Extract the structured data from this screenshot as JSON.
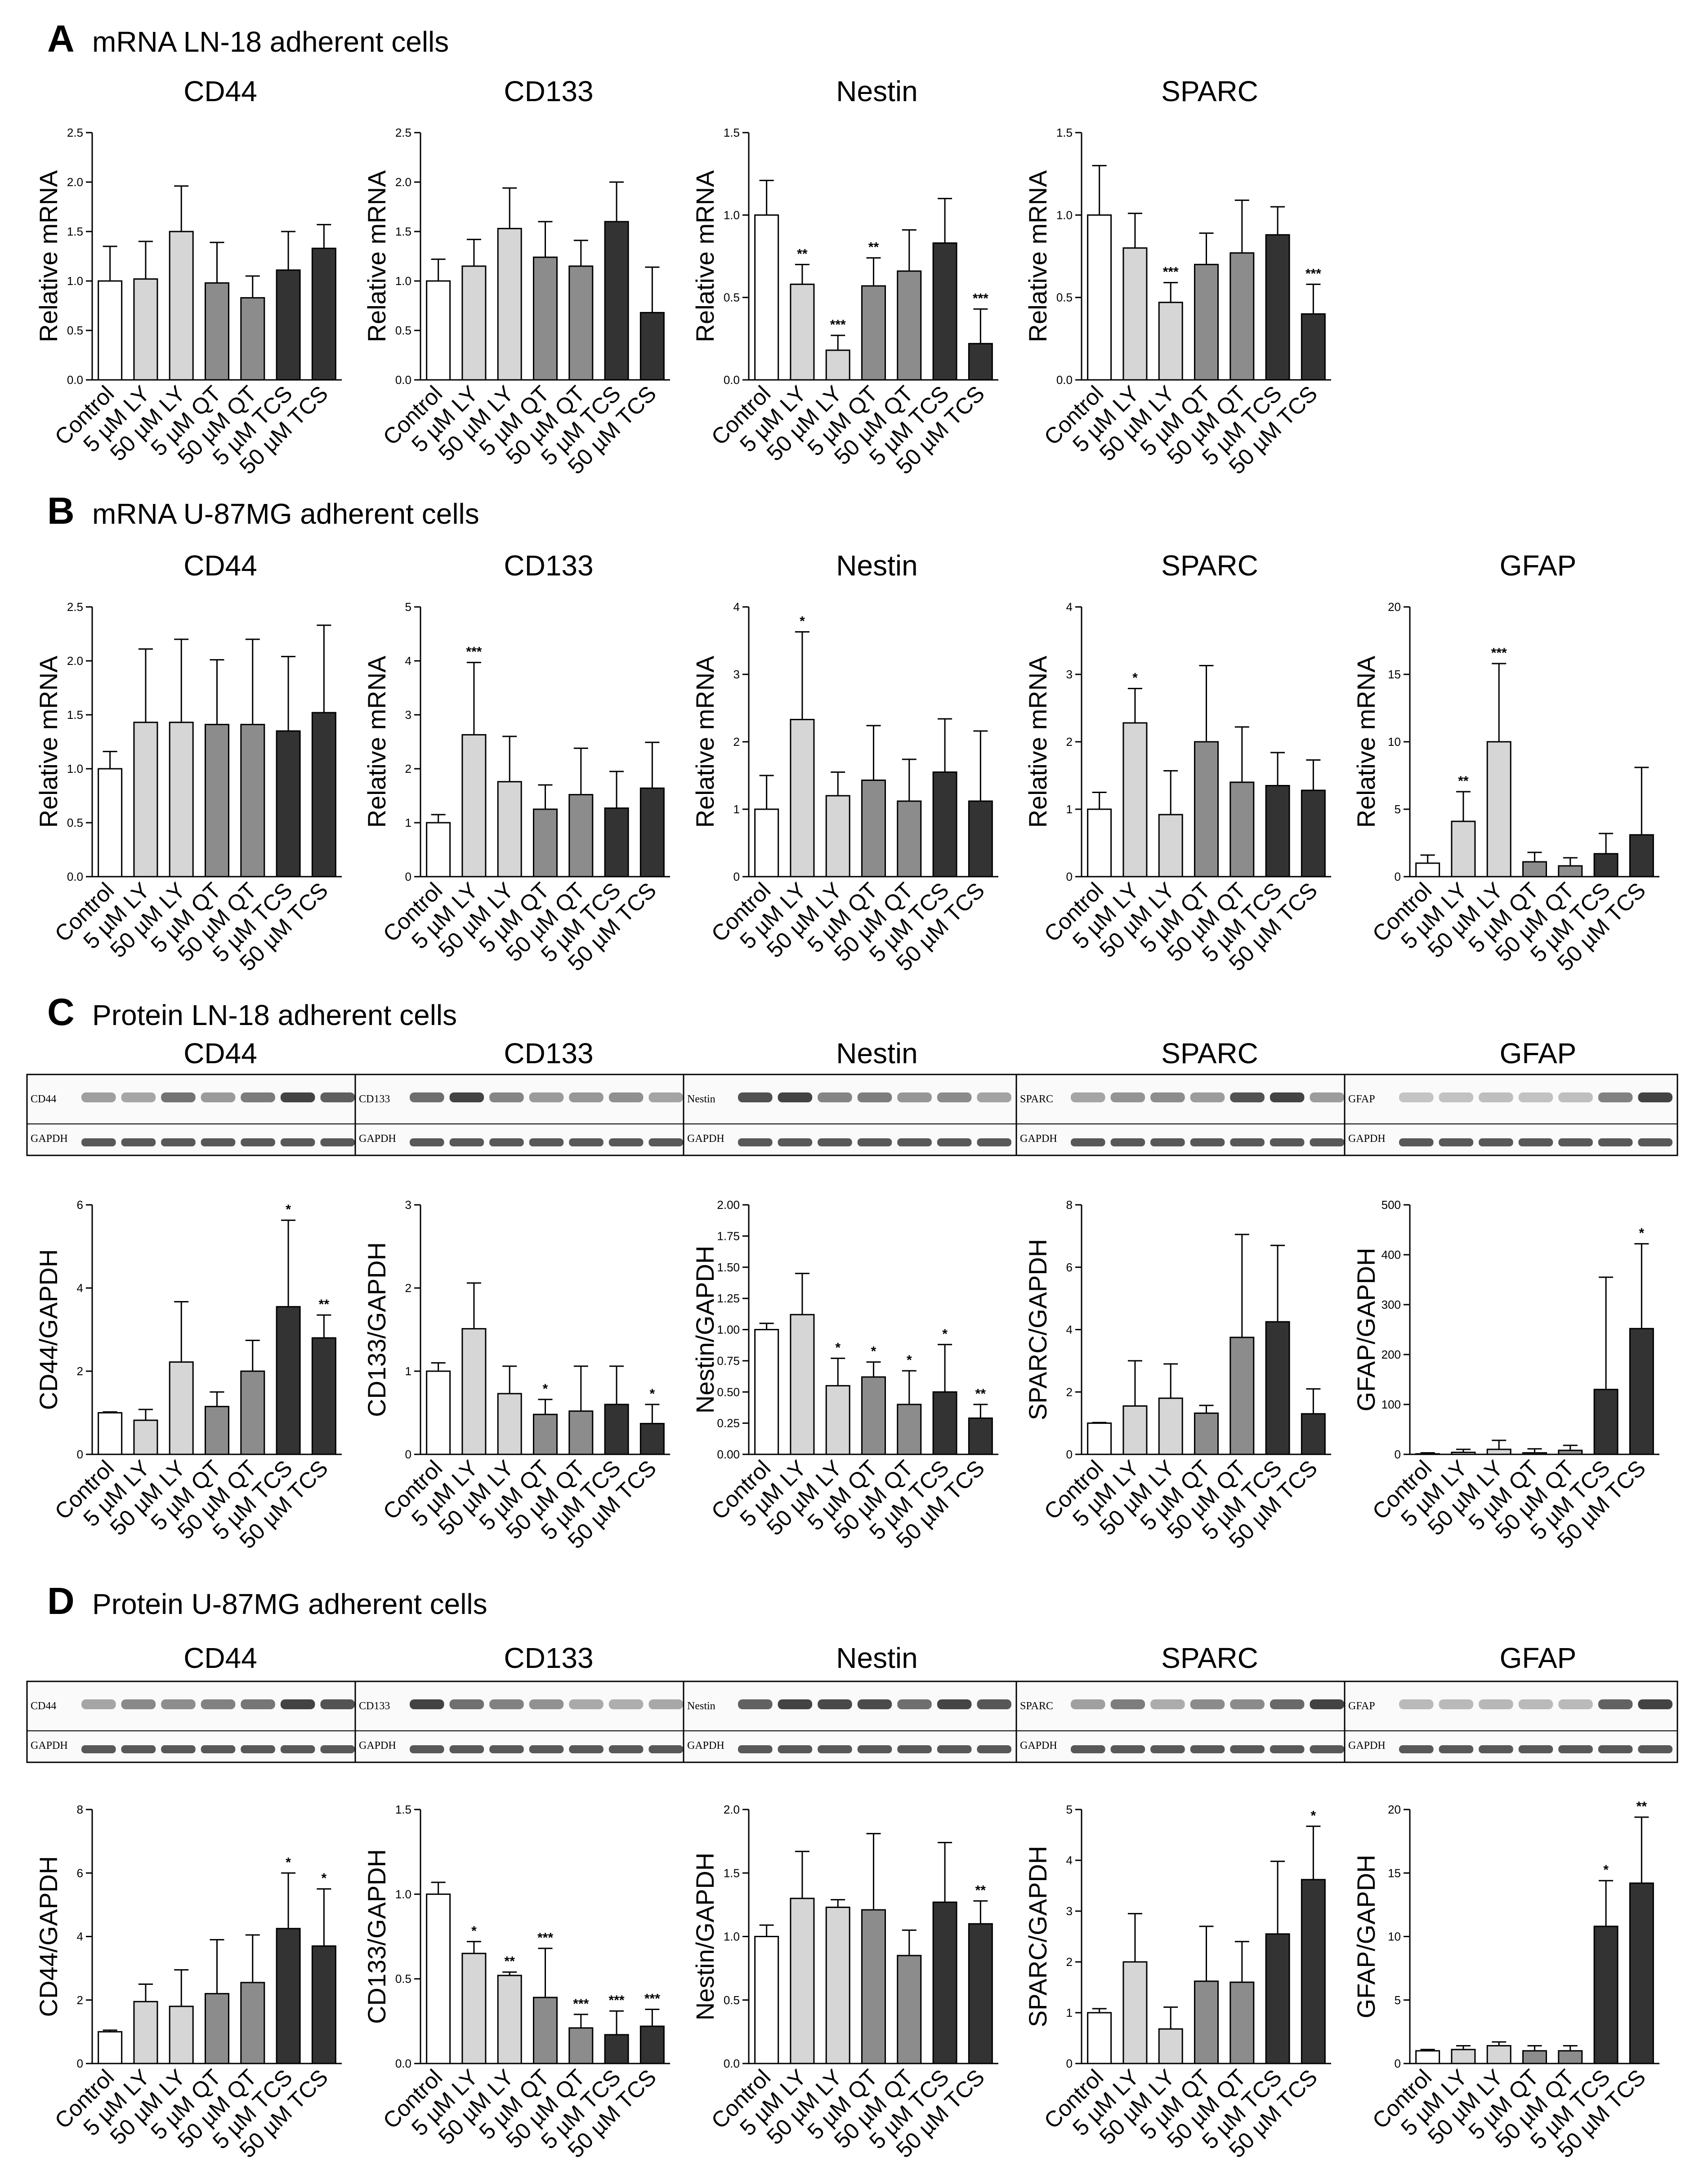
{
  "categories": [
    "Control",
    "5 µM LY",
    "50 µM LY",
    "5 µM QT",
    "50 µM QT",
    "5 µM TCS",
    "50 µM TCS"
  ],
  "bar_colors": [
    "#ffffff",
    "#d6d6d6",
    "#d6d6d6",
    "#8c8c8c",
    "#8c8c8c",
    "#333333",
    "#333333"
  ],
  "blot_labels": {
    "loading_control": "GAPDH"
  },
  "panels": [
    {
      "letter": "A",
      "title": "mRNA LN-18 adherent cells"
    },
    {
      "letter": "B",
      "title": "mRNA U-87MG adherent cells"
    },
    {
      "letter": "C",
      "title": "Protein LN-18 adherent cells"
    },
    {
      "letter": "D",
      "title": "Protein U-87MG adherent cells"
    }
  ],
  "chart_data": [
    {
      "panel": "A",
      "type": "bar",
      "title": "CD44",
      "ylabel": "Relative mRNA",
      "ylim": [
        0,
        2.5
      ],
      "ticks": [
        "0.0",
        "0.5",
        "1.0",
        "1.5",
        "2.0",
        "2.5"
      ],
      "values": [
        1.0,
        1.02,
        1.5,
        0.98,
        0.83,
        1.11,
        1.33
      ],
      "errors": [
        0.35,
        0.38,
        0.46,
        0.41,
        0.22,
        0.39,
        0.24
      ],
      "stars": [
        "",
        "",
        "",
        "",
        "",
        "",
        ""
      ]
    },
    {
      "panel": "A",
      "type": "bar",
      "title": "CD133",
      "ylabel": "Relative mRNA",
      "ylim": [
        0,
        2.5
      ],
      "ticks": [
        "0.0",
        "0.5",
        "1.0",
        "1.5",
        "2.0",
        "2.5"
      ],
      "values": [
        1.0,
        1.15,
        1.53,
        1.24,
        1.15,
        1.6,
        0.68
      ],
      "errors": [
        0.22,
        0.27,
        0.41,
        0.36,
        0.26,
        0.4,
        0.46
      ],
      "stars": [
        "",
        "",
        "",
        "",
        "",
        "",
        ""
      ]
    },
    {
      "panel": "A",
      "type": "bar",
      "title": "Nestin",
      "ylabel": "Relative mRNA",
      "ylim": [
        0,
        1.5
      ],
      "ticks": [
        "0.0",
        "0.5",
        "1.0",
        "1.5"
      ],
      "values": [
        1.0,
        0.58,
        0.18,
        0.57,
        0.66,
        0.83,
        0.22
      ],
      "errors": [
        0.21,
        0.12,
        0.09,
        0.17,
        0.25,
        0.27,
        0.21
      ],
      "stars": [
        "",
        "**",
        "***",
        "**",
        "",
        "",
        "***"
      ]
    },
    {
      "panel": "A",
      "type": "bar",
      "title": "SPARC",
      "ylabel": "Relative mRNA",
      "ylim": [
        0,
        1.5
      ],
      "ticks": [
        "0.0",
        "0.5",
        "1.0",
        "1.5"
      ],
      "values": [
        1.0,
        0.8,
        0.47,
        0.7,
        0.77,
        0.88,
        0.4
      ],
      "errors": [
        0.3,
        0.21,
        0.12,
        0.19,
        0.32,
        0.17,
        0.18
      ],
      "stars": [
        "",
        "",
        "***",
        "",
        "",
        "",
        "***"
      ]
    },
    {
      "panel": "B",
      "type": "bar",
      "title": "CD44",
      "ylabel": "Relative mRNA",
      "ylim": [
        0,
        2.5
      ],
      "ticks": [
        "0.0",
        "0.5",
        "1.0",
        "1.5",
        "2.0",
        "2.5"
      ],
      "values": [
        1.0,
        1.43,
        1.43,
        1.41,
        1.41,
        1.35,
        1.52
      ],
      "errors": [
        0.16,
        0.68,
        0.77,
        0.6,
        0.79,
        0.69,
        0.81
      ],
      "stars": [
        "",
        "",
        "",
        "",
        "",
        "",
        ""
      ]
    },
    {
      "panel": "B",
      "type": "bar",
      "title": "CD133",
      "ylabel": "Relative mRNA",
      "ylim": [
        0,
        5
      ],
      "ticks": [
        "0",
        "1",
        "2",
        "3",
        "4",
        "5"
      ],
      "values": [
        1.0,
        2.63,
        1.76,
        1.25,
        1.52,
        1.27,
        1.64
      ],
      "errors": [
        0.15,
        1.34,
        0.84,
        0.45,
        0.86,
        0.68,
        0.85
      ],
      "stars": [
        "",
        "***",
        "",
        "",
        "",
        "",
        ""
      ]
    },
    {
      "panel": "B",
      "type": "bar",
      "title": "Nestin",
      "ylabel": "Relative mRNA",
      "ylim": [
        0,
        4
      ],
      "ticks": [
        "0",
        "1",
        "2",
        "3",
        "4"
      ],
      "values": [
        1.0,
        2.33,
        1.2,
        1.43,
        1.12,
        1.55,
        1.12
      ],
      "errors": [
        0.5,
        1.3,
        0.35,
        0.81,
        0.62,
        0.79,
        1.04
      ],
      "stars": [
        "",
        "*",
        "",
        "",
        "",
        "",
        ""
      ]
    },
    {
      "panel": "B",
      "type": "bar",
      "title": "SPARC",
      "ylabel": "Relative mRNA",
      "ylim": [
        0,
        4
      ],
      "ticks": [
        "0",
        "1",
        "2",
        "3",
        "4"
      ],
      "values": [
        1.0,
        2.28,
        0.92,
        2.0,
        1.4,
        1.35,
        1.28
      ],
      "errors": [
        0.25,
        0.51,
        0.65,
        1.13,
        0.82,
        0.49,
        0.45
      ],
      "stars": [
        "",
        "*",
        "",
        "",
        "",
        "",
        ""
      ]
    },
    {
      "panel": "B",
      "type": "bar",
      "title": "GFAP",
      "ylabel": "Relative mRNA",
      "ylim": [
        0,
        20
      ],
      "ticks": [
        "0",
        "5",
        "10",
        "15",
        "20"
      ],
      "values": [
        1.0,
        4.1,
        10.0,
        1.1,
        0.8,
        1.7,
        3.1
      ],
      "errors": [
        0.6,
        2.2,
        5.8,
        0.7,
        0.6,
        1.5,
        5.0
      ],
      "stars": [
        "",
        "**",
        "***",
        "",
        "",
        "",
        ""
      ]
    },
    {
      "panel": "C",
      "type": "bar",
      "title": "CD44",
      "ylabel": "CD44/GAPDH",
      "ylim": [
        0,
        6
      ],
      "ticks": [
        "0",
        "2",
        "4",
        "6"
      ],
      "values": [
        1.0,
        0.82,
        2.22,
        1.15,
        2.0,
        3.55,
        2.8
      ],
      "errors": [
        0.02,
        0.26,
        1.45,
        0.35,
        0.74,
        2.08,
        0.55
      ],
      "stars": [
        "",
        "",
        "",
        "",
        "",
        "*",
        "**"
      ]
    },
    {
      "panel": "C",
      "type": "bar",
      "title": "CD133",
      "ylabel": "CD133/GAPDH",
      "ylim": [
        0,
        3
      ],
      "ticks": [
        "0",
        "1",
        "2",
        "3"
      ],
      "values": [
        1.0,
        1.51,
        0.73,
        0.48,
        0.52,
        0.6,
        0.37
      ],
      "errors": [
        0.1,
        0.55,
        0.33,
        0.18,
        0.54,
        0.46,
        0.23
      ],
      "stars": [
        "",
        "",
        "",
        "*",
        "",
        "",
        "*"
      ]
    },
    {
      "panel": "C",
      "type": "bar",
      "title": "Nestin",
      "ylabel": "Nestin/GAPDH",
      "ylim": [
        0,
        2.0
      ],
      "ticks": [
        "0.00",
        "0.25",
        "0.50",
        "0.75",
        "1.00",
        "1.25",
        "1.50",
        "1.75",
        "2.00"
      ],
      "values": [
        1.0,
        1.12,
        0.55,
        0.62,
        0.4,
        0.5,
        0.29
      ],
      "errors": [
        0.05,
        0.33,
        0.22,
        0.12,
        0.27,
        0.38,
        0.11
      ],
      "stars": [
        "",
        "",
        "*",
        "*",
        "*",
        "*",
        "**"
      ]
    },
    {
      "panel": "C",
      "type": "bar",
      "title": "SPARC",
      "ylabel": "SPARC/GAPDH",
      "ylim": [
        0,
        8
      ],
      "ticks": [
        "0",
        "2",
        "4",
        "6",
        "8"
      ],
      "values": [
        1.0,
        1.55,
        1.8,
        1.32,
        3.75,
        4.25,
        1.3
      ],
      "errors": [
        0.02,
        1.45,
        1.1,
        0.25,
        3.3,
        2.45,
        0.8
      ],
      "stars": [
        "",
        "",
        "",
        "",
        "",
        "",
        ""
      ]
    },
    {
      "panel": "C",
      "type": "bar",
      "title": "GFAP",
      "ylabel": "GFAP/GAPDH",
      "ylim": [
        0,
        500
      ],
      "ticks": [
        "0",
        "100",
        "200",
        "300",
        "400",
        "500"
      ],
      "values": [
        1,
        4,
        10,
        3,
        8,
        130,
        252
      ],
      "errors": [
        2,
        6,
        18,
        8,
        10,
        225,
        170
      ],
      "stars": [
        "",
        "",
        "",
        "",
        "",
        "",
        "*"
      ]
    },
    {
      "panel": "D",
      "type": "bar",
      "title": "CD44",
      "ylabel": "CD44/GAPDH",
      "ylim": [
        0,
        8
      ],
      "ticks": [
        "0",
        "2",
        "4",
        "6",
        "8"
      ],
      "values": [
        1.0,
        1.95,
        1.8,
        2.2,
        2.55,
        4.25,
        3.7
      ],
      "errors": [
        0.05,
        0.55,
        1.15,
        1.7,
        1.5,
        1.75,
        1.8
      ],
      "stars": [
        "",
        "",
        "",
        "",
        "",
        "*",
        "*"
      ]
    },
    {
      "panel": "D",
      "type": "bar",
      "title": "CD133",
      "ylabel": "CD133/GAPDH",
      "ylim": [
        0,
        1.5
      ],
      "ticks": [
        "0.0",
        "0.5",
        "1.0",
        "1.5"
      ],
      "values": [
        1.0,
        0.65,
        0.52,
        0.39,
        0.21,
        0.17,
        0.22
      ],
      "errors": [
        0.07,
        0.07,
        0.02,
        0.29,
        0.08,
        0.14,
        0.1
      ],
      "stars": [
        "",
        "*",
        "**",
        "***",
        "***",
        "***",
        "***"
      ]
    },
    {
      "panel": "D",
      "type": "bar",
      "title": "Nestin",
      "ylabel": "Nestin/GAPDH",
      "ylim": [
        0,
        2.0
      ],
      "ticks": [
        "0.0",
        "0.5",
        "1.0",
        "1.5",
        "2.0"
      ],
      "values": [
        1.0,
        1.3,
        1.23,
        1.21,
        0.85,
        1.27,
        1.1
      ],
      "errors": [
        0.09,
        0.37,
        0.06,
        0.6,
        0.2,
        0.47,
        0.18
      ],
      "stars": [
        "",
        "",
        "",
        "",
        "",
        "",
        "**"
      ]
    },
    {
      "panel": "D",
      "type": "bar",
      "title": "SPARC",
      "ylabel": "SPARC/GAPDH",
      "ylim": [
        0,
        5
      ],
      "ticks": [
        "0",
        "1",
        "2",
        "3",
        "4",
        "5"
      ],
      "values": [
        1.0,
        2.0,
        0.68,
        1.62,
        1.6,
        2.55,
        3.62
      ],
      "errors": [
        0.08,
        0.95,
        0.43,
        1.08,
        0.8,
        1.43,
        1.05
      ],
      "stars": [
        "",
        "",
        "",
        "",
        "",
        "",
        "*"
      ]
    },
    {
      "panel": "D",
      "type": "bar",
      "title": "GFAP",
      "ylabel": "GFAP/GAPDH",
      "ylim": [
        0,
        20
      ],
      "ticks": [
        "0",
        "5",
        "10",
        "15",
        "20"
      ],
      "values": [
        1.0,
        1.1,
        1.4,
        1.0,
        1.0,
        10.8,
        14.2
      ],
      "errors": [
        0.1,
        0.3,
        0.3,
        0.4,
        0.4,
        3.6,
        5.2
      ],
      "stars": [
        "",
        "",
        "",
        "",
        "",
        "*",
        "**"
      ]
    }
  ]
}
